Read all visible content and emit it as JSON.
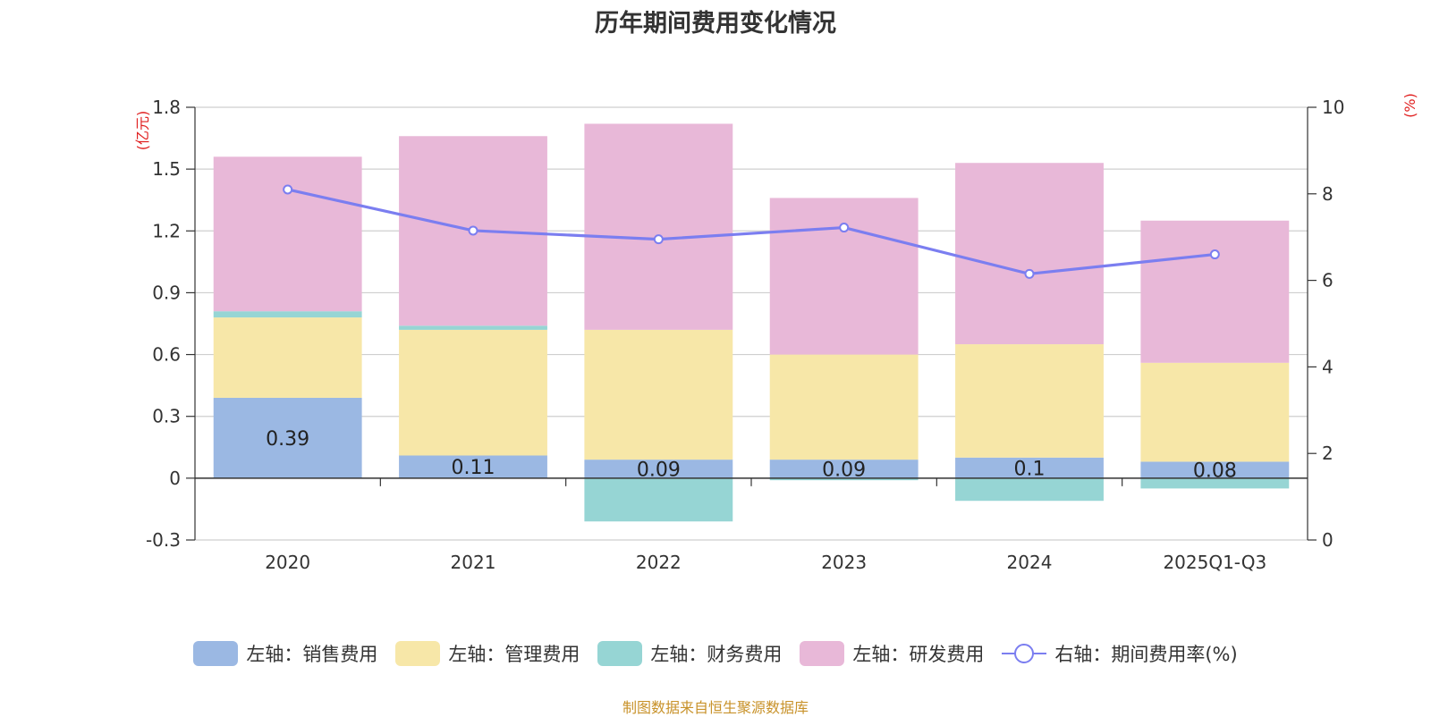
{
  "chart_data": {
    "type": "bar",
    "title": "历年期间费用变化情况",
    "categories": [
      "2020",
      "2021",
      "2022",
      "2023",
      "2024",
      "2025Q1-Q3"
    ],
    "left_axis": {
      "unit_label": "(亿元)",
      "ylim": [
        -0.3,
        1.8
      ],
      "ticks": [
        -0.3,
        0,
        0.3,
        0.6,
        0.9,
        1.2,
        1.5,
        1.8
      ],
      "tick_labels": [
        "-0.3",
        "0",
        "0.3",
        "0.6",
        "0.9",
        "1.2",
        "1.5",
        "1.8"
      ]
    },
    "right_axis": {
      "unit_label": "(%)",
      "ylim": [
        0,
        10
      ],
      "ticks": [
        0,
        2,
        4,
        6,
        8,
        10
      ],
      "tick_labels": [
        "0",
        "2",
        "4",
        "6",
        "8",
        "10"
      ]
    },
    "grid": true,
    "series": [
      {
        "name": "左轴：销售费用",
        "type": "bar",
        "axis": "left",
        "color": "#9bb8e3",
        "values": [
          0.39,
          0.11,
          0.09,
          0.09,
          0.1,
          0.08
        ],
        "labels": [
          "0.39",
          "0.11",
          "0.09",
          "0.09",
          "0.1",
          "0.08"
        ]
      },
      {
        "name": "左轴：管理费用",
        "type": "bar",
        "axis": "left",
        "color": "#f7e7a8",
        "values": [
          0.39,
          0.61,
          0.63,
          0.51,
          0.55,
          0.48
        ]
      },
      {
        "name": "左轴：财务费用",
        "type": "bar",
        "axis": "left",
        "color": "#96d5d4",
        "values": [
          0.03,
          0.02,
          -0.21,
          -0.01,
          -0.11,
          -0.05
        ]
      },
      {
        "name": "左轴：研发费用",
        "type": "bar",
        "axis": "left",
        "color": "#e8b8d8",
        "values": [
          0.75,
          0.92,
          1.0,
          0.76,
          0.88,
          0.69
        ]
      },
      {
        "name": "右轴：期间费用率(%)",
        "type": "line",
        "axis": "right",
        "color": "#7b7ef0",
        "values": [
          8.1,
          7.15,
          6.95,
          7.22,
          6.15,
          6.6
        ]
      }
    ],
    "legend_position": "bottom",
    "source": "制图数据来自恒生聚源数据库"
  }
}
